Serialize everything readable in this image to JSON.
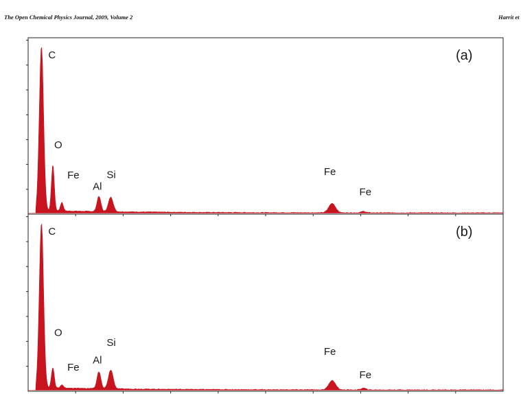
{
  "header": {
    "journal": "The Open Chemical Physics Journal, 2009, Volume 2",
    "author": "Harrit et"
  },
  "chart_data": [
    {
      "type": "area",
      "panel_label": "(a)",
      "title": "",
      "xlabel": "",
      "ylabel": "",
      "color": "#c8141e",
      "xlim": [
        0,
        10
      ],
      "ylim": [
        0,
        1
      ],
      "peaks": [
        {
          "label": "C",
          "x": 0.28,
          "y": 0.97
        },
        {
          "label": "O",
          "x": 0.52,
          "y": 0.27
        },
        {
          "label": "Fe",
          "x": 0.71,
          "y": 0.05
        },
        {
          "label": "Al",
          "x": 1.49,
          "y": 0.09
        },
        {
          "label": "Si",
          "x": 1.74,
          "y": 0.085
        },
        {
          "label": "Fe",
          "x": 6.4,
          "y": 0.055
        },
        {
          "label": "Fe",
          "x": 7.06,
          "y": 0.008
        }
      ]
    },
    {
      "type": "area",
      "panel_label": "(b)",
      "title": "",
      "xlabel": "",
      "ylabel": "",
      "color": "#c8141e",
      "xlim": [
        0,
        10
      ],
      "ylim": [
        0,
        1
      ],
      "peaks": [
        {
          "label": "C",
          "x": 0.28,
          "y": 0.97
        },
        {
          "label": "O",
          "x": 0.52,
          "y": 0.12
        },
        {
          "label": "Fe",
          "x": 0.71,
          "y": 0.018
        },
        {
          "label": "Al",
          "x": 1.49,
          "y": 0.1
        },
        {
          "label": "Si",
          "x": 1.74,
          "y": 0.11
        },
        {
          "label": "Fe",
          "x": 6.4,
          "y": 0.055
        },
        {
          "label": "Fe",
          "x": 7.06,
          "y": 0.01
        }
      ]
    }
  ]
}
